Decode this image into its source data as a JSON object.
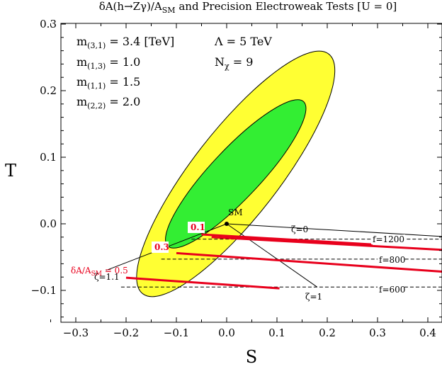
{
  "colors": {
    "outer_ellipse": "#ffff33",
    "inner_ellipse": "#33ee33",
    "delta_lines": "#e8001c",
    "black": "#000000"
  },
  "chart_data": {
    "type": "scatter",
    "title": "δA(h→Zγ)/A_SM and Precision Electroweak Tests [U = 0]",
    "xlabel": "S",
    "ylabel": "T",
    "xlim": [
      -0.35,
      0.45
    ],
    "ylim": [
      -0.15,
      0.31
    ],
    "x_ticks": [
      -0.3,
      -0.2,
      -0.1,
      0.0,
      0.1,
      0.2,
      0.3,
      0.4
    ],
    "x_tick_labels": [
      "−0.3",
      "−0.2",
      "−0.1",
      "0.0",
      "0.1",
      "0.2",
      "0.3",
      "0.4"
    ],
    "y_ticks": [
      -0.1,
      0.0,
      0.1,
      0.2,
      0.3
    ],
    "y_tick_labels": [
      "−0.1",
      "0.0",
      "0.1",
      "0.2",
      "0.3"
    ],
    "grid": false,
    "parameters": [
      "m(3,1) = 3.4 [TeV]",
      "m(1,3) = 1.0",
      "m(1,1) = 1.5",
      "m(2,2) = 2.0",
      "Λ = 5 TeV",
      "Nχ = 9"
    ],
    "regions": [
      {
        "name": "outer",
        "center": [
          0.018,
          0.075
        ],
        "boundary_through": [
          [
            -0.19,
            -0.095
          ],
          [
            0.18,
            0.265
          ]
        ]
      },
      {
        "name": "inner",
        "center": [
          0.018,
          0.075
        ],
        "boundary_through": [
          [
            -0.12,
            -0.027
          ],
          [
            0.15,
            0.19
          ]
        ]
      }
    ],
    "sm_point": {
      "label": "SM",
      "x": 0.0,
      "y": 0.0
    },
    "zeta_lines": [
      {
        "label": "ζ=0",
        "from": [
          0.0,
          0.0
        ],
        "to": [
          0.45,
          -0.02
        ]
      },
      {
        "label": "ζ=1",
        "from": [
          0.0,
          0.0
        ],
        "to": [
          0.18,
          -0.095
        ]
      },
      {
        "label": "ζ=1.1",
        "from": [
          0.0,
          0.0
        ],
        "to": [
          -0.24,
          -0.07
        ]
      }
    ],
    "f_lines": [
      {
        "label": "f=1200",
        "y": -0.023,
        "x_start": -0.07,
        "x_end": 0.45
      },
      {
        "label": "f=800",
        "y": -0.053,
        "x_start": -0.13,
        "x_end": 0.45
      },
      {
        "label": "f=600",
        "y": -0.095,
        "x_start": -0.21,
        "x_end": 0.45
      }
    ],
    "delta_lines": [
      {
        "label": "0.1",
        "x": [
          -0.05,
          0.29
        ],
        "y": [
          -0.016,
          -0.031
        ]
      },
      {
        "label": "0.1",
        "x": [
          -0.03,
          0.45
        ],
        "y": [
          -0.02,
          -0.04
        ]
      },
      {
        "label": "0.3",
        "x": [
          -0.1,
          0.45
        ],
        "y": [
          -0.044,
          -0.073
        ]
      },
      {
        "label": "δA/A_SM = 0.5",
        "x": [
          -0.2,
          0.105
        ],
        "y": [
          -0.081,
          -0.097
        ]
      }
    ]
  }
}
